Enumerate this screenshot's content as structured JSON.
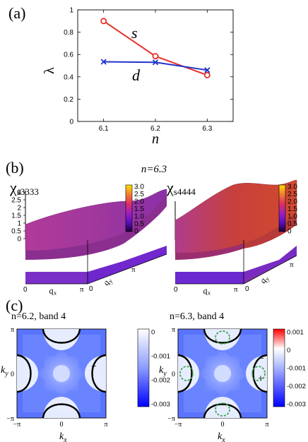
{
  "panel_a": {
    "label": "(a)",
    "chart_data": {
      "type": "line",
      "x": [
        6.1,
        6.2,
        6.3
      ],
      "x_tick_labels": [
        "6.1",
        "6.2",
        "6.3"
      ],
      "y_tick_labels": [
        "0",
        "0.2",
        "0.4",
        "0.6",
        "0.8",
        "1"
      ],
      "xlim": [
        6.05,
        6.35
      ],
      "ylim": [
        0,
        1
      ],
      "xlabel": "n",
      "ylabel": "λ",
      "series": [
        {
          "name": "s",
          "values": [
            0.9,
            0.585,
            0.415
          ],
          "color": "#e8302a",
          "marker": "circle"
        },
        {
          "name": "d",
          "values": [
            0.535,
            0.53,
            0.46
          ],
          "color": "#2233cc",
          "marker": "x"
        }
      ]
    }
  },
  "panel_b": {
    "label": "(b)",
    "title": "n=6.3",
    "plots": [
      {
        "label_main": "χ",
        "label_sub": "s3333",
        "z_ticks": [
          "3",
          "2.5",
          "2",
          "1.5",
          "1",
          "0.5",
          "0"
        ],
        "colorbar_ticks": [
          "3.0",
          "2.5",
          "2.0",
          "1.5",
          "1.0",
          "0.5",
          "0"
        ],
        "qx_ticks": [
          "0",
          "π"
        ],
        "qy_ticks": [
          "0",
          "π"
        ],
        "qx_label": "q",
        "qx_sub": "x",
        "qy_label": "q",
        "qy_sub": "y"
      },
      {
        "label_main": "χ",
        "label_sub": "s4444",
        "colorbar_ticks": [
          "3.0",
          "2.5",
          "2.0",
          "1.5",
          "1.0",
          "0.5",
          "0"
        ],
        "qx_ticks": [
          "0",
          "π"
        ],
        "qy_ticks": [
          "0",
          "π"
        ],
        "qx_label": "q",
        "qx_sub": "x",
        "qy_label": "q",
        "qy_sub": "y"
      }
    ]
  },
  "panel_c": {
    "label": "(c)",
    "plots": [
      {
        "title": "n=6.2,  band 4",
        "y_ticks": [
          "π",
          "0",
          "−π"
        ],
        "x_ticks": [
          "−π",
          "0",
          "π"
        ],
        "ylabel_main": "k",
        "ylabel_sub": "y",
        "xlabel_main": "k",
        "xlabel_sub": "x",
        "colorbar_ticks": [
          "0",
          "-0.001",
          "-0.002",
          "-0.003"
        ],
        "minus_mark": "−"
      },
      {
        "title": "n=6.3,  band 4",
        "y_ticks": [
          "π",
          "0",
          "−π"
        ],
        "x_ticks": [
          "−π",
          "0",
          "π"
        ],
        "ylabel_main": "k",
        "ylabel_sub": "y",
        "xlabel_main": "k",
        "xlabel_sub": "x",
        "colorbar_ticks": [
          "0.001",
          "0",
          "-0.001",
          "-0.002",
          "-0.003"
        ],
        "minus_mark": "−",
        "plus_mark": "+"
      }
    ]
  }
}
